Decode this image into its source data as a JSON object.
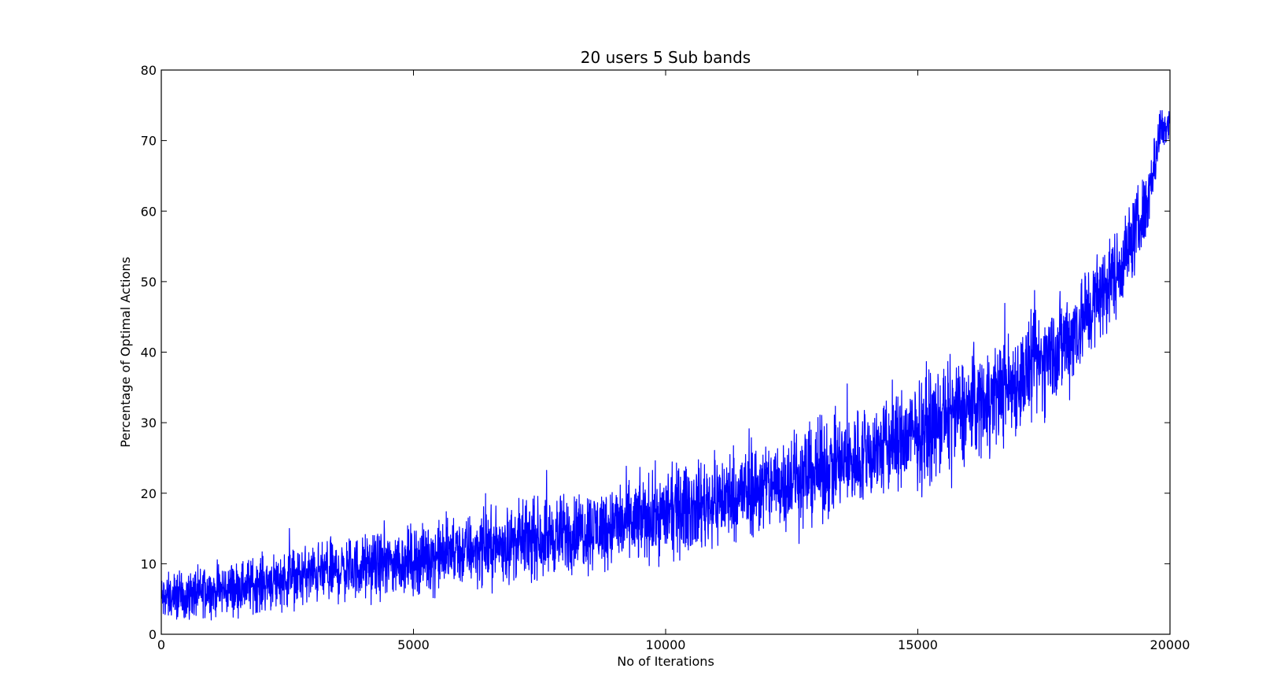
{
  "chart_data": {
    "type": "line",
    "title": "20 users 5 Sub bands",
    "xlabel": "No of Iterations",
    "ylabel": "Percentage of Optimal Actions",
    "xlim": [
      0,
      20000
    ],
    "ylim": [
      0,
      80
    ],
    "xticks": [
      0,
      5000,
      10000,
      15000,
      20000
    ],
    "yticks": [
      0,
      10,
      20,
      30,
      40,
      50,
      60,
      70,
      80
    ],
    "grid": false,
    "legend": "none",
    "series": [
      {
        "color": "#0000ff",
        "noise_amplitude": [
          [
            0,
            2.5
          ],
          [
            5000,
            3.5
          ],
          [
            10000,
            4.5
          ],
          [
            15000,
            5.5
          ],
          [
            18000,
            5.5
          ],
          [
            19500,
            4
          ],
          [
            20000,
            2
          ]
        ],
        "trend": [
          [
            0,
            5
          ],
          [
            1000,
            6
          ],
          [
            2000,
            7.3
          ],
          [
            3000,
            8.5
          ],
          [
            4000,
            9.5
          ],
          [
            5000,
            10.5
          ],
          [
            6000,
            11.8
          ],
          [
            7000,
            13
          ],
          [
            8000,
            14.2
          ],
          [
            9000,
            15.5
          ],
          [
            10000,
            17
          ],
          [
            11000,
            19
          ],
          [
            12000,
            21
          ],
          [
            13000,
            23
          ],
          [
            14000,
            25.5
          ],
          [
            15000,
            28.5
          ],
          [
            16000,
            32
          ],
          [
            17000,
            36
          ],
          [
            18000,
            42
          ],
          [
            19000,
            52
          ],
          [
            19500,
            60
          ],
          [
            19800,
            71
          ],
          [
            20000,
            73
          ]
        ]
      }
    ]
  }
}
